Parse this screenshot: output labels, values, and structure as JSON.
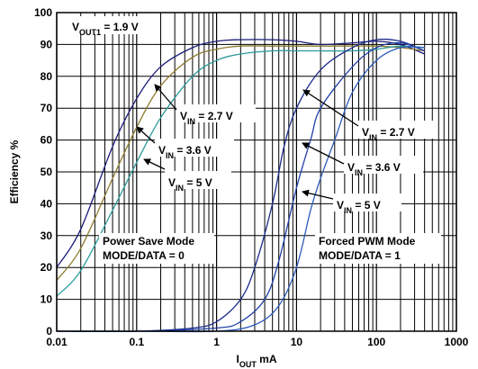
{
  "chart_data": {
    "type": "line",
    "xlabel": {
      "main": "I",
      "sub": "OUT",
      "unit": " mA"
    },
    "ylabel": "Efficiency %",
    "xscale": "log",
    "xlim": [
      0.01,
      1000
    ],
    "ylim": [
      0,
      100
    ],
    "grid": true,
    "xticks": [
      {
        "value": 0.01,
        "label": "0.01"
      },
      {
        "value": 0.1,
        "label": "0.1"
      },
      {
        "value": 1,
        "label": "1"
      },
      {
        "value": 10,
        "label": "10"
      },
      {
        "value": 100,
        "label": "100"
      },
      {
        "value": 1000,
        "label": "1000"
      }
    ],
    "yticks": [
      {
        "value": 0,
        "label": "0"
      },
      {
        "value": 10,
        "label": "10"
      },
      {
        "value": 20,
        "label": "20"
      },
      {
        "value": 30,
        "label": "30"
      },
      {
        "value": 40,
        "label": "40"
      },
      {
        "value": 50,
        "label": "50"
      },
      {
        "value": 60,
        "label": "60"
      },
      {
        "value": 70,
        "label": "70"
      },
      {
        "value": 80,
        "label": "80"
      },
      {
        "value": 90,
        "label": "90"
      },
      {
        "value": 100,
        "label": "100"
      }
    ],
    "series": [
      {
        "color": "#1b1b7a",
        "points": [
          [
            0.01,
            20
          ],
          [
            0.02,
            32
          ],
          [
            0.05,
            58
          ],
          [
            0.1,
            73
          ],
          [
            0.2,
            83
          ],
          [
            0.5,
            89
          ],
          [
            1,
            91
          ],
          [
            2,
            91.5
          ],
          [
            5,
            91.5
          ],
          [
            10,
            91
          ],
          [
            20,
            90
          ],
          [
            50,
            90.5
          ],
          [
            100,
            91
          ],
          [
            200,
            90
          ],
          [
            400,
            87
          ]
        ]
      },
      {
        "color": "#8c7a2e",
        "points": [
          [
            0.01,
            16
          ],
          [
            0.02,
            26
          ],
          [
            0.05,
            48
          ],
          [
            0.1,
            64
          ],
          [
            0.2,
            77
          ],
          [
            0.5,
            86
          ],
          [
            1,
            88.5
          ],
          [
            2,
            89.5
          ],
          [
            5,
            89.5
          ],
          [
            10,
            89.5
          ],
          [
            20,
            89.5
          ],
          [
            50,
            89.5
          ],
          [
            100,
            89.5
          ],
          [
            200,
            89
          ],
          [
            400,
            88
          ]
        ]
      },
      {
        "color": "#2a9a9a",
        "points": [
          [
            0.01,
            11
          ],
          [
            0.02,
            19
          ],
          [
            0.05,
            38
          ],
          [
            0.1,
            53
          ],
          [
            0.2,
            67
          ],
          [
            0.5,
            80
          ],
          [
            1,
            85
          ],
          [
            2,
            87
          ],
          [
            5,
            88
          ],
          [
            10,
            88
          ],
          [
            20,
            88
          ],
          [
            50,
            88
          ],
          [
            100,
            88.5
          ],
          [
            200,
            89.5
          ],
          [
            400,
            89
          ]
        ]
      },
      {
        "color": "#1b2b8c",
        "points": [
          [
            0.01,
            0
          ],
          [
            0.1,
            0
          ],
          [
            0.5,
            1
          ],
          [
            1,
            3
          ],
          [
            2,
            10
          ],
          [
            3,
            20
          ],
          [
            5,
            40
          ],
          [
            7,
            58
          ],
          [
            10,
            70
          ],
          [
            20,
            82
          ],
          [
            50,
            89
          ],
          [
            100,
            91.5
          ],
          [
            200,
            91
          ],
          [
            400,
            88
          ]
        ]
      },
      {
        "color": "#2040a8",
        "points": [
          [
            0.01,
            0
          ],
          [
            0.1,
            0
          ],
          [
            1,
            1
          ],
          [
            2,
            3
          ],
          [
            4,
            10
          ],
          [
            6,
            22
          ],
          [
            10,
            45
          ],
          [
            15,
            60
          ],
          [
            20,
            70
          ],
          [
            50,
            83
          ],
          [
            100,
            89
          ],
          [
            200,
            90.5
          ],
          [
            400,
            88
          ]
        ]
      },
      {
        "color": "#2a5ab8",
        "points": [
          [
            0.01,
            0
          ],
          [
            0.1,
            0
          ],
          [
            1,
            0
          ],
          [
            3,
            2
          ],
          [
            6,
            8
          ],
          [
            10,
            20
          ],
          [
            15,
            38
          ],
          [
            20,
            48
          ],
          [
            30,
            60
          ],
          [
            50,
            75
          ],
          [
            100,
            85
          ],
          [
            200,
            89
          ],
          [
            400,
            89
          ]
        ]
      }
    ],
    "annotations": [
      {
        "pre": "V",
        "sub": "OUT1",
        "post": " = 1.9 V"
      },
      {
        "pre": "V",
        "sub": "IN",
        "post": " = 2.7 V"
      },
      {
        "pre": "V",
        "sub": "IN",
        "post": " = 3.6 V"
      },
      {
        "pre": "V",
        "sub": "IN",
        "post": " = 5 V"
      },
      {
        "pre": "V",
        "sub": "IN",
        "post": " = 2.7 V"
      },
      {
        "pre": "V",
        "sub": "IN",
        "post": " = 3.6 V"
      },
      {
        "pre": "V",
        "sub": "IN",
        "post": " = 5 V"
      }
    ],
    "mode_labels": [
      [
        "Power Save Mode",
        "MODE/DATA = 0"
      ],
      [
        "Forced PWM Mode",
        "MODE/DATA = 1"
      ]
    ]
  }
}
